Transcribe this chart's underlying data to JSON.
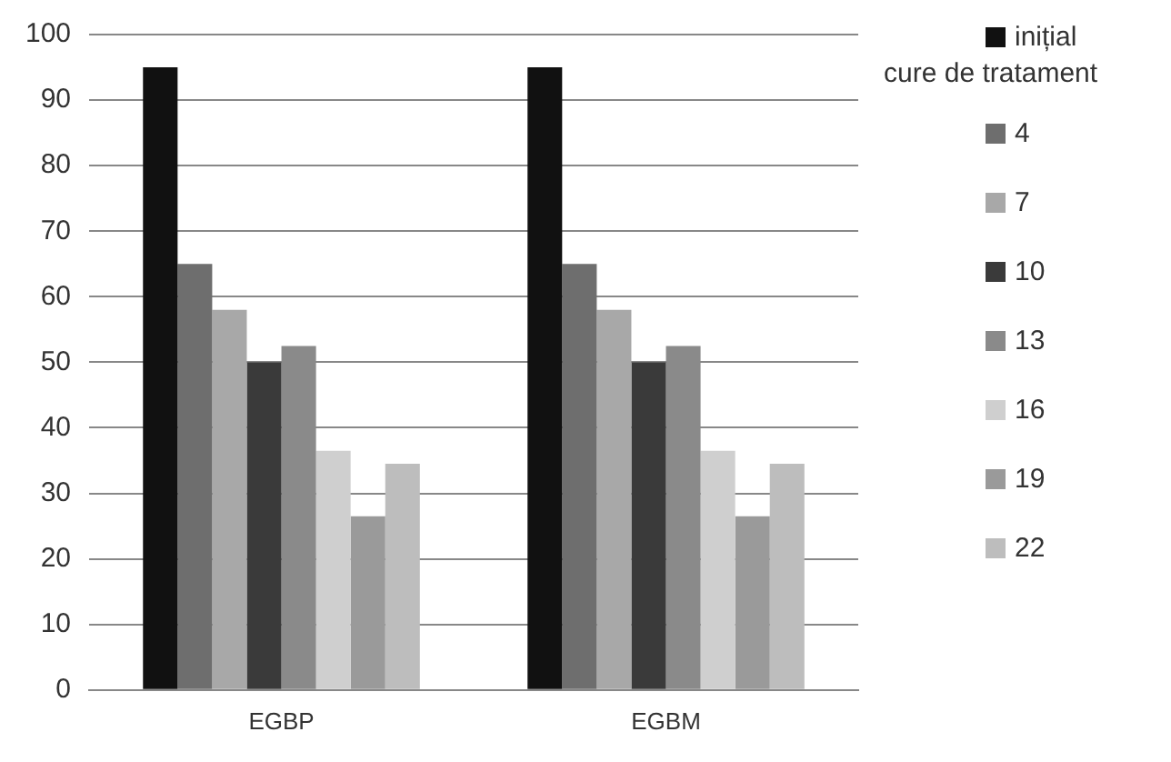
{
  "chart_data": {
    "type": "bar",
    "categories": [
      "EGBP",
      "EGBM"
    ],
    "legend_title": "cure de tratament",
    "series": [
      {
        "name": "inițial",
        "color": "#111111",
        "values": [
          95,
          95
        ]
      },
      {
        "name": "4",
        "color": "#6e6e6e",
        "values": [
          65,
          65
        ]
      },
      {
        "name": "7",
        "color": "#a8a8a8",
        "values": [
          58,
          58
        ]
      },
      {
        "name": "10",
        "color": "#3a3a3a",
        "values": [
          50,
          50
        ]
      },
      {
        "name": "13",
        "color": "#8a8a8a",
        "values": [
          52.5,
          52.5
        ]
      },
      {
        "name": "16",
        "color": "#cfcfcf",
        "values": [
          36.5,
          36.5
        ]
      },
      {
        "name": "19",
        "color": "#9a9a9a",
        "values": [
          26.5,
          26.5
        ]
      },
      {
        "name": "22",
        "color": "#bdbdbd",
        "values": [
          34.5,
          34.5
        ]
      }
    ],
    "ylim": [
      0,
      100
    ],
    "yticks": [
      0,
      10,
      20,
      30,
      40,
      50,
      60,
      70,
      80,
      90,
      100
    ],
    "grid": "y",
    "legend": "right"
  }
}
